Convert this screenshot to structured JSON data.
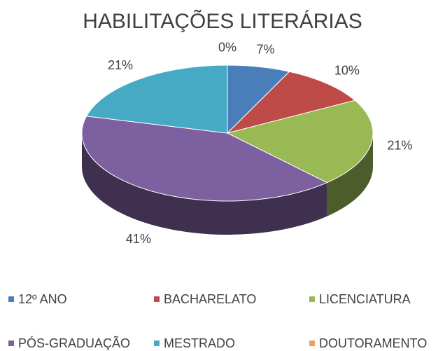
{
  "chart_data": {
    "type": "pie",
    "title": "HABILITAÇÕES LITERÁRIAS",
    "categories": [
      "12º ANO",
      "BACHARELATO",
      "LICENCIATURA",
      "PÓS-GRADUAÇÃO",
      "MESTRADO",
      "DOUTORAMENTO"
    ],
    "values": [
      7,
      10,
      21,
      41,
      21,
      0
    ],
    "value_labels": [
      "7%",
      "10%",
      "21%",
      "41%",
      "21%",
      "0%"
    ],
    "colors": [
      "#4a7ebb",
      "#be4b48",
      "#98b954",
      "#7d60a0",
      "#46aac5",
      "#f59d56"
    ],
    "legend": "bottom"
  }
}
